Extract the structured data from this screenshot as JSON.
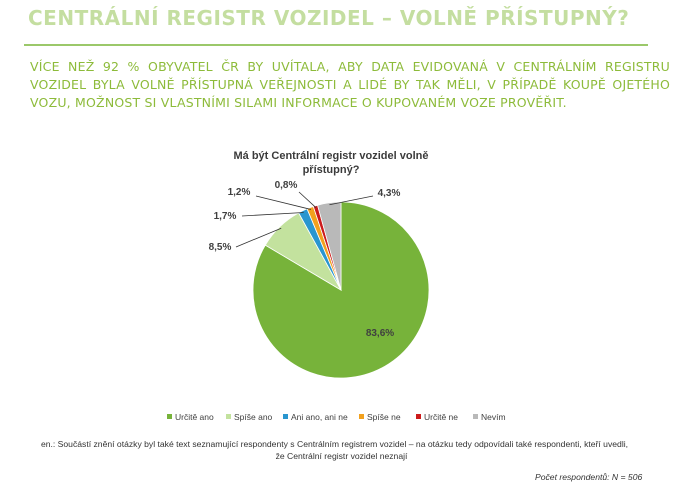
{
  "slide": {
    "title": "CENTRÁLNÍ REGISTR VOZIDEL – VOLNĚ PŘÍSTUPNÝ?",
    "subtitle": "VÍCE NEŽ 92 % OBYVATEL ČR BY UVÍTALA, ABY DATA EVIDOVANÁ V CENTRÁLNÍM REGISTRU VOZIDEL BYLA VOLNĚ PŘÍSTUPNÁ VEŘEJNOSTI A LIDÉ BY TAK MĚLI, V PŘÍPADĚ KOUPĚ OJETÉHO VOZU, MOŽNOST SI VLASTNÍMI SILAMI INFORMACE O KUPOVANÉM VOZE PROVĚŘIT.",
    "footnote_line1": "en.: Součástí znění otázky byl také text seznamující respondenty s Centrálním registrem vozidel – na otázku tedy odpovídali také respondenti, kteří uvedli,",
    "footnote_line2": "že Centrální registr vozidel neznají",
    "respondents": "Počet respondentů: N = 506"
  },
  "chart_data": {
    "type": "pie",
    "title_lines": [
      "Má být Centrální registr vozidel volně",
      "přístupný?"
    ],
    "legend_placement": "bottom",
    "slices": [
      {
        "name": "Určitě ano",
        "value": 83.6,
        "label": "83,6%",
        "color": "#77b33a"
      },
      {
        "name": "Spíše ano",
        "value": 8.5,
        "label": "8,5%",
        "color": "#c3e29e"
      },
      {
        "name": "Ani ano, ani ne",
        "value": 1.7,
        "label": "1,7%",
        "color": "#2996cf"
      },
      {
        "name": "Spíše ne",
        "value": 1.2,
        "label": "1,2%",
        "color": "#f2a11e"
      },
      {
        "name": "Určitě ne",
        "value": 0.8,
        "label": "0,8%",
        "color": "#cc1b1b"
      },
      {
        "name": "Nevím",
        "value": 4.3,
        "label": "4,3%",
        "color": "#b9b9b9"
      }
    ]
  }
}
